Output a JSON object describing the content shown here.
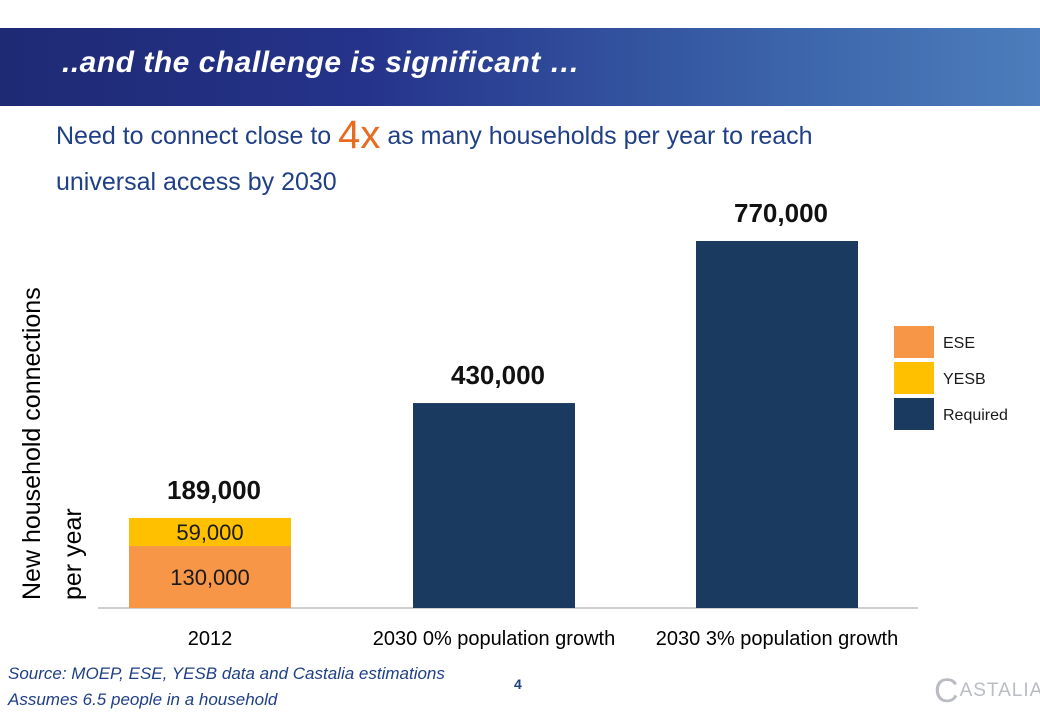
{
  "header": {
    "title": "..and the challenge is significant …"
  },
  "subtitle": {
    "before": "Need to connect close to ",
    "emphasis": "4x",
    "after": " as many households per year to reach universal access by 2030"
  },
  "chart_data": {
    "type": "bar",
    "stacked": true,
    "ylabel_line1": "New household connections",
    "ylabel_line2": "per year",
    "categories": [
      "2012",
      "2030 0% population growth",
      "2030 3% population growth"
    ],
    "series": [
      {
        "name": "ESE",
        "color": "#f79646",
        "values": [
          130000,
          0,
          0
        ],
        "labels": [
          "130,000",
          "",
          ""
        ]
      },
      {
        "name": "YESB",
        "color": "#ffc000",
        "values": [
          59000,
          0,
          0
        ],
        "labels": [
          "59,000",
          "",
          ""
        ]
      },
      {
        "name": "Required",
        "color": "#1a3a5f",
        "values": [
          0,
          430000,
          770000
        ],
        "labels": [
          "",
          "",
          ""
        ]
      }
    ],
    "totals": [
      "189,000",
      "430,000",
      "770,000"
    ],
    "ylim": [
      0,
      770000
    ],
    "grid": false,
    "legend_position": "right"
  },
  "footer": {
    "source": "Source: MOEP, ESE, YESB data and Castalia estimations",
    "note": "Assumes 6.5 people in a household",
    "page_number": "4",
    "logo_initial": "C",
    "logo_text": "ASTALIA"
  }
}
